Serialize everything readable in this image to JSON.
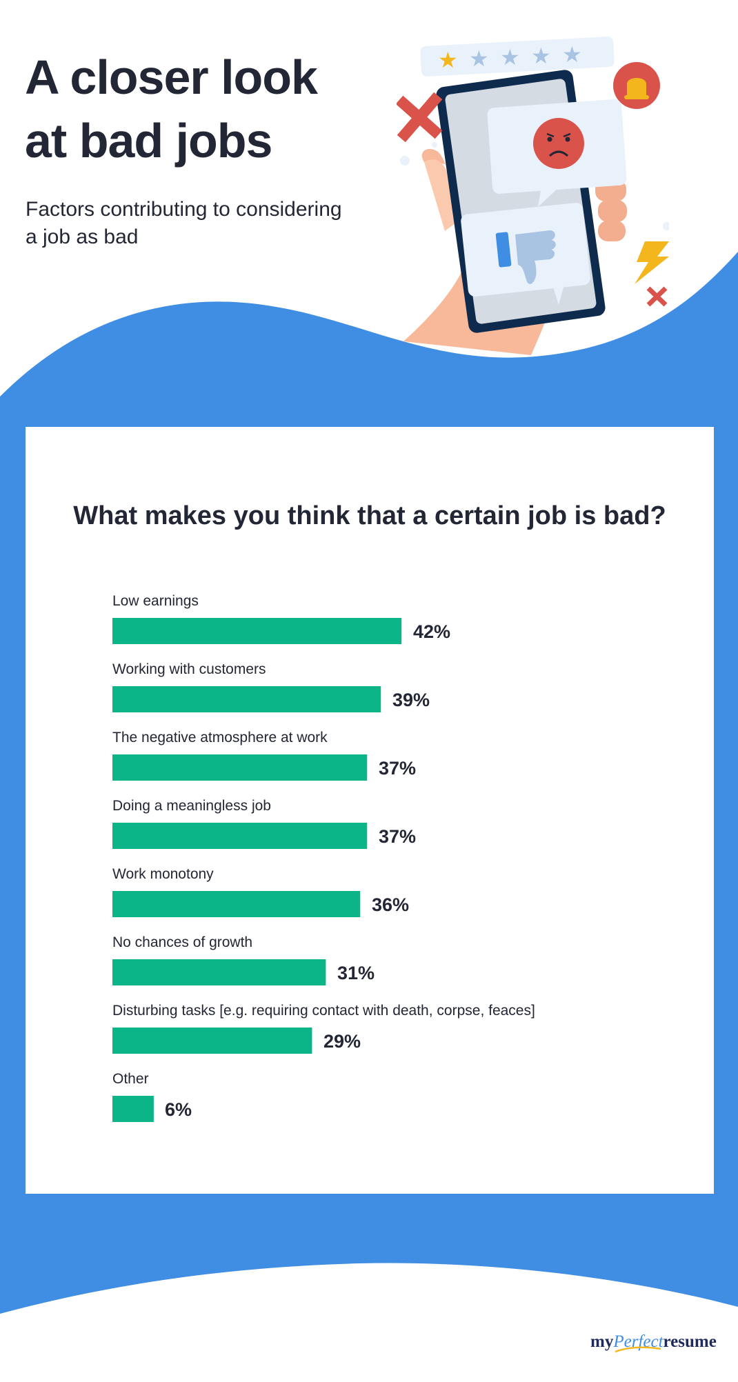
{
  "header": {
    "title_line1": "A closer look",
    "title_line2": "at bad jobs",
    "subtitle_line1": "Factors contributing to considering",
    "subtitle_line2": "a job as bad"
  },
  "colors": {
    "background_blue": "#3f8ee3",
    "bar_green": "#0bb587",
    "text_dark": "#232635",
    "accent_red": "#d9534a",
    "accent_yellow": "#f3b61c"
  },
  "illustration": {
    "icons": [
      "star-rating-icon",
      "bell-icon",
      "angry-face-icon",
      "thumbs-down-icon",
      "lightning-icon",
      "x-mark-icon",
      "hand-phone-icon"
    ],
    "stars_filled": 1,
    "stars_total": 5
  },
  "chart_data": {
    "type": "bar",
    "orientation": "horizontal",
    "title": "What makes you think that a certain job is bad?",
    "categories": [
      "Low earnings",
      "Working with customers",
      "The negative atmosphere at work",
      "Doing a meaningless job",
      "Work monotony",
      "No chances of growth",
      "Disturbing tasks [e.g. requiring contact with death, corpse, feaces]",
      "Other"
    ],
    "values": [
      42,
      39,
      37,
      37,
      36,
      31,
      29,
      6
    ],
    "value_labels": [
      "42%",
      "39%",
      "37%",
      "37%",
      "36%",
      "31%",
      "29%",
      "6%"
    ],
    "unit": "%",
    "xlim": [
      0,
      100
    ],
    "grid": false,
    "legend": "none"
  },
  "footer": {
    "brand_my": "my",
    "brand_perfect": "Perfect",
    "brand_resume": "resume"
  }
}
